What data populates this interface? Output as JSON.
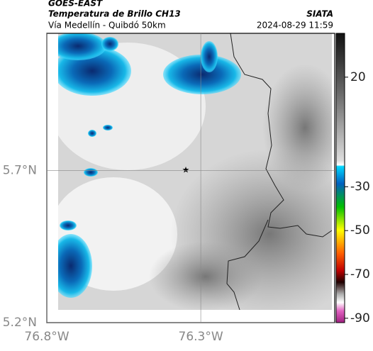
{
  "header": {
    "title": "GOES-EAST",
    "subtitle": "Temperatura de Brillo CH13",
    "location": "Vía Medellín - Quibdó 50km",
    "source": "SIATA",
    "datetime": "2024-08-29 11:59"
  },
  "axes": {
    "xlim": [
      -76.8,
      -75.865
    ],
    "xticks": [
      {
        "value": -76.8,
        "label": "76.8°W"
      },
      {
        "value": -76.3,
        "label": "76.3°W"
      }
    ],
    "ylim": [
      5.2,
      6.15
    ],
    "yticks": [
      {
        "value": 5.2,
        "label": "5.2°N"
      },
      {
        "value": 5.7,
        "label": "5.7°N"
      }
    ],
    "grid": true
  },
  "colorbar": {
    "lim": [
      40,
      -92
    ],
    "ticks": [
      20,
      -30,
      -50,
      -70,
      -90
    ]
  }
}
